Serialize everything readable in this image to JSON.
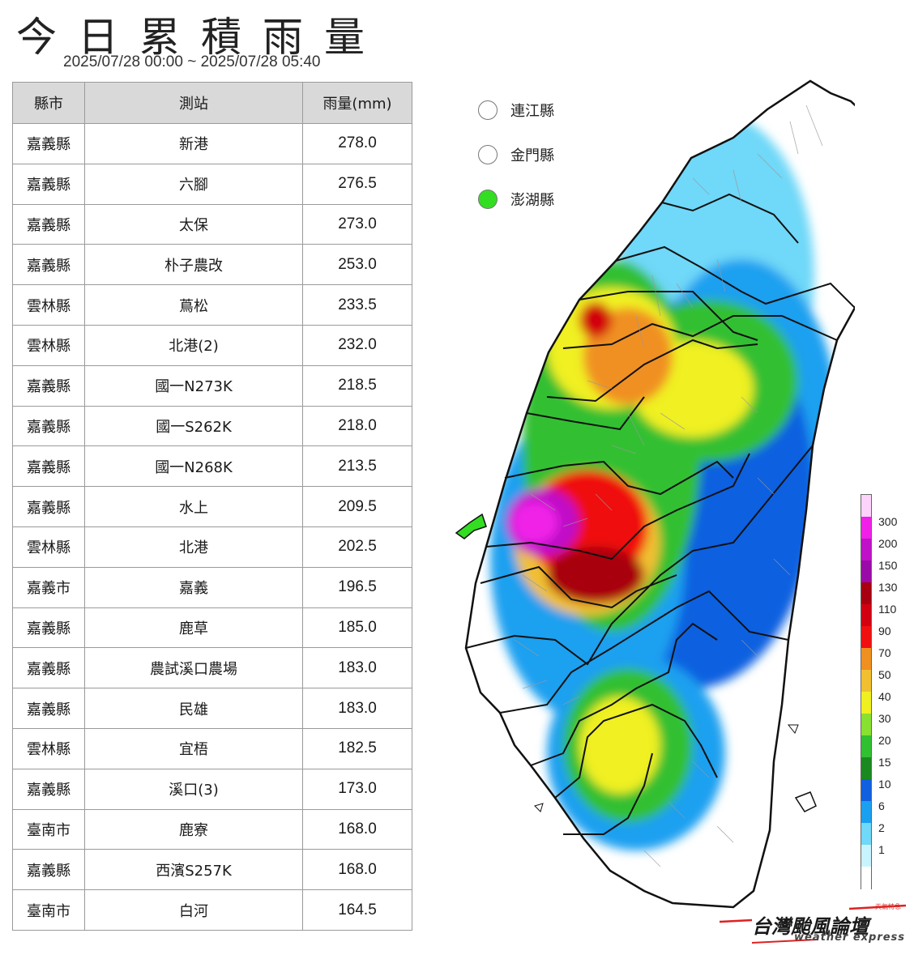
{
  "title": "今日累積雨量",
  "subtitle": "2025/07/28 00:00 ~ 2025/07/28 05:40",
  "table": {
    "headers": [
      "縣市",
      "測站",
      "雨量(mm)"
    ],
    "rows": [
      {
        "county": "嘉義縣",
        "station": "新港",
        "rain": "278.0"
      },
      {
        "county": "嘉義縣",
        "station": "六腳",
        "rain": "276.5"
      },
      {
        "county": "嘉義縣",
        "station": "太保",
        "rain": "273.0"
      },
      {
        "county": "嘉義縣",
        "station": "朴子農改",
        "rain": "253.0"
      },
      {
        "county": "雲林縣",
        "station": "蔦松",
        "rain": "233.5"
      },
      {
        "county": "雲林縣",
        "station": "北港(2)",
        "rain": "232.0"
      },
      {
        "county": "嘉義縣",
        "station": "國一N273K",
        "rain": "218.5"
      },
      {
        "county": "嘉義縣",
        "station": "國一S262K",
        "rain": "218.0"
      },
      {
        "county": "嘉義縣",
        "station": "國一N268K",
        "rain": "213.5"
      },
      {
        "county": "嘉義縣",
        "station": "水上",
        "rain": "209.5"
      },
      {
        "county": "雲林縣",
        "station": "北港",
        "rain": "202.5"
      },
      {
        "county": "嘉義市",
        "station": "嘉義",
        "rain": "196.5"
      },
      {
        "county": "嘉義縣",
        "station": "鹿草",
        "rain": "185.0"
      },
      {
        "county": "嘉義縣",
        "station": "農試溪口農場",
        "rain": "183.0"
      },
      {
        "county": "嘉義縣",
        "station": "民雄",
        "rain": "183.0"
      },
      {
        "county": "雲林縣",
        "station": "宜梧",
        "rain": "182.5"
      },
      {
        "county": "嘉義縣",
        "station": "溪口(3)",
        "rain": "173.0"
      },
      {
        "county": "臺南市",
        "station": "鹿寮",
        "rain": "168.0"
      },
      {
        "county": "嘉義縣",
        "station": "西濱S257K",
        "rain": "168.0"
      },
      {
        "county": "臺南市",
        "station": "白河",
        "rain": "164.5"
      }
    ]
  },
  "islands": [
    {
      "name": "連江縣",
      "color": "#ffffff"
    },
    {
      "name": "金門縣",
      "color": "#ffffff"
    },
    {
      "name": "澎湖縣",
      "color": "#33dd22"
    }
  ],
  "legend": {
    "ticks": [
      "300",
      "200",
      "150",
      "130",
      "110",
      "90",
      "70",
      "50",
      "40",
      "30",
      "20",
      "15",
      "10",
      "6",
      "2",
      "1"
    ],
    "colors": [
      "#fdd2fb",
      "#f020e8",
      "#c010c8",
      "#9a0aa8",
      "#a80010",
      "#d20010",
      "#f01010",
      "#f09020",
      "#f0c030",
      "#f0f020",
      "#88e030",
      "#30c030",
      "#1a8a20",
      "#1060e0",
      "#1aa0f0",
      "#70d8f8",
      "#c8f4ff",
      "#ffffff"
    ]
  },
  "logo": {
    "name": "台灣颱風論壇",
    "subtitle": "weather express",
    "tag": "天氣特急"
  }
}
